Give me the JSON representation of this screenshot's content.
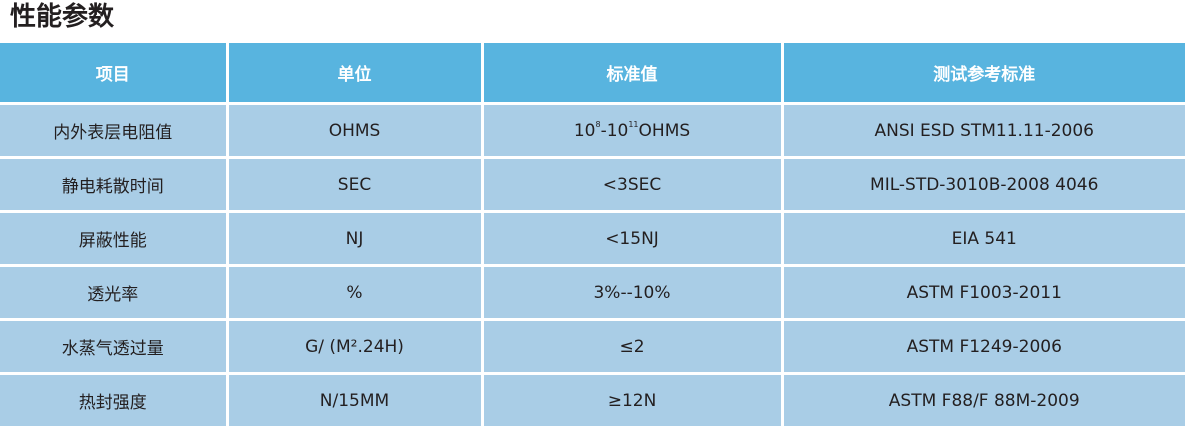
{
  "title": "性能参数",
  "headers": [
    "项目",
    "单位",
    "标准值",
    "测试参考标准"
  ],
  "rows": [
    {
      "item": "内外表层电阻值",
      "unit": "OHMS",
      "std": {
        "a": "10",
        "e1": "8",
        "b": "-10",
        "e2": "11",
        "c": "OHMS"
      },
      "ref": "ANSI ESD STM11.11-2006"
    },
    {
      "item": "静电耗散时间",
      "unit": "SEC",
      "std": "<3SEC",
      "ref": "MIL-STD-3010B-2008 4046"
    },
    {
      "item": "屏蔽性能",
      "unit": "NJ",
      "std": "<15NJ",
      "ref": "EIA 541"
    },
    {
      "item": "透光率",
      "unit": "%",
      "std": "3%--10%",
      "ref": "ASTM F1003-2011"
    },
    {
      "item": "水蒸气透过量",
      "unit": "G/ (M².24H)",
      "std": "≤2",
      "ref": "ASTM F1249-2006"
    },
    {
      "item": "热封强度",
      "unit": "N/15MM",
      "std": "≥12N",
      "ref": "ASTM F88/F 88M-2009"
    }
  ]
}
